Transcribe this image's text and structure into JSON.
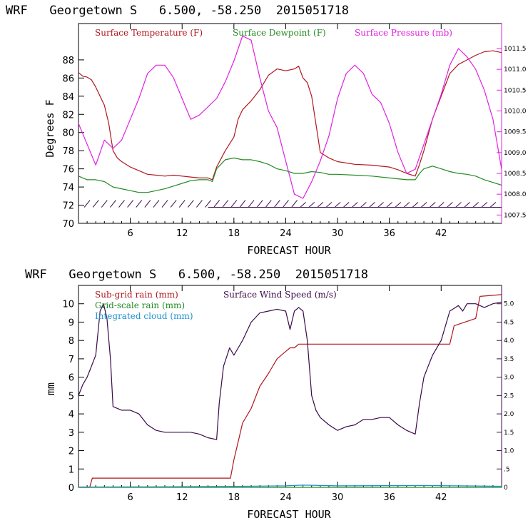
{
  "chart_data": [
    {
      "type": "line",
      "title": "WRF   Georgetown S   6.500, -58.250  2015051718",
      "xlabel": "FORECAST HOUR",
      "ylabel": "Degrees F",
      "xlim": [
        0,
        49
      ],
      "ylim": [
        70,
        92
      ],
      "y2lim": [
        1007.3,
        1012.1
      ],
      "x_ticks": [
        "6",
        "12",
        "18",
        "24",
        "30",
        "36",
        "42"
      ],
      "y_ticks": [
        "70",
        "72",
        "74",
        "76",
        "78",
        "80",
        "82",
        "84",
        "86",
        "88"
      ],
      "y2_ticks": [
        "1007.5",
        "1008.0",
        "1008.5",
        "1009.0",
        "1009.5",
        "1010.0",
        "1010.5",
        "1011.0",
        "1011.5"
      ],
      "grid": false,
      "series": [
        {
          "name": "Surface Temperature (F)",
          "axis": "left",
          "color": "#b0171f",
          "points": [
            [
              0,
              86.6
            ],
            [
              0.5,
              86.2
            ],
            [
              1,
              86.1
            ],
            [
              1.5,
              85.8
            ],
            [
              2,
              85.0
            ],
            [
              3,
              83.0
            ],
            [
              3.5,
              81.0
            ],
            [
              4,
              78.0
            ],
            [
              4.5,
              77.2
            ],
            [
              5,
              76.8
            ],
            [
              6,
              76.2
            ],
            [
              7,
              75.8
            ],
            [
              8,
              75.4
            ],
            [
              9,
              75.3
            ],
            [
              10,
              75.2
            ],
            [
              11,
              75.3
            ],
            [
              12,
              75.2
            ],
            [
              13,
              75.1
            ],
            [
              14,
              75.0
            ],
            [
              15,
              75.0
            ],
            [
              15.5,
              74.8
            ],
            [
              16,
              76.2
            ],
            [
              17,
              78.0
            ],
            [
              18,
              79.5
            ],
            [
              18.5,
              81.5
            ],
            [
              19,
              82.5
            ],
            [
              20,
              83.5
            ],
            [
              21,
              84.7
            ],
            [
              22,
              86.3
            ],
            [
              23,
              87.0
            ],
            [
              24,
              86.8
            ],
            [
              25,
              87.0
            ],
            [
              25.5,
              87.3
            ],
            [
              26,
              86.0
            ],
            [
              26.5,
              85.5
            ],
            [
              27,
              84.0
            ],
            [
              28,
              77.8
            ],
            [
              29,
              77.2
            ],
            [
              30,
              76.8
            ],
            [
              32,
              76.5
            ],
            [
              34,
              76.4
            ],
            [
              36,
              76.2
            ],
            [
              37,
              75.9
            ],
            [
              38,
              75.5
            ],
            [
              39,
              75.2
            ],
            [
              39.5,
              76.5
            ],
            [
              40,
              78.0
            ],
            [
              41,
              81.5
            ],
            [
              42,
              84.0
            ],
            [
              43,
              86.5
            ],
            [
              44,
              87.5
            ],
            [
              45,
              88.0
            ],
            [
              46,
              88.5
            ],
            [
              47,
              88.9
            ],
            [
              48,
              89.0
            ],
            [
              49,
              88.8
            ]
          ]
        },
        {
          "name": "Surface Dewpoint (F)",
          "axis": "left",
          "color": "#228b22",
          "points": [
            [
              0,
              75.2
            ],
            [
              1,
              74.8
            ],
            [
              2,
              74.8
            ],
            [
              3,
              74.6
            ],
            [
              4,
              74.0
            ],
            [
              5,
              73.8
            ],
            [
              6,
              73.6
            ],
            [
              7,
              73.4
            ],
            [
              8,
              73.4
            ],
            [
              9,
              73.6
            ],
            [
              10,
              73.8
            ],
            [
              11,
              74.1
            ],
            [
              12,
              74.4
            ],
            [
              13,
              74.7
            ],
            [
              14,
              74.8
            ],
            [
              15,
              74.8
            ],
            [
              15.5,
              74.6
            ],
            [
              16,
              76.0
            ],
            [
              17,
              77.0
            ],
            [
              18,
              77.2
            ],
            [
              19,
              77.0
            ],
            [
              20,
              77.0
            ],
            [
              21,
              76.8
            ],
            [
              22,
              76.5
            ],
            [
              23,
              76.0
            ],
            [
              24,
              75.8
            ],
            [
              25,
              75.5
            ],
            [
              26,
              75.5
            ],
            [
              27,
              75.7
            ],
            [
              28,
              75.6
            ],
            [
              29,
              75.4
            ],
            [
              30,
              75.4
            ],
            [
              32,
              75.3
            ],
            [
              34,
              75.2
            ],
            [
              36,
              75.0
            ],
            [
              38,
              74.8
            ],
            [
              39,
              74.8
            ],
            [
              39.5,
              75.5
            ],
            [
              40,
              76.0
            ],
            [
              41,
              76.3
            ],
            [
              42,
              76.0
            ],
            [
              43,
              75.7
            ],
            [
              44,
              75.5
            ],
            [
              45,
              75.4
            ],
            [
              46,
              75.2
            ],
            [
              47,
              74.8
            ],
            [
              48,
              74.5
            ],
            [
              49,
              74.2
            ]
          ]
        },
        {
          "name": "Surface Pressure (mb)",
          "axis": "right",
          "color": "#e020e0",
          "points": [
            [
              0,
              1009.7
            ],
            [
              1,
              1009.2
            ],
            [
              2,
              1008.7
            ],
            [
              3,
              1009.3
            ],
            [
              4,
              1009.1
            ],
            [
              5,
              1009.3
            ],
            [
              6,
              1009.8
            ],
            [
              7,
              1010.3
            ],
            [
              8,
              1010.9
            ],
            [
              9,
              1011.1
            ],
            [
              10,
              1011.1
            ],
            [
              11,
              1010.8
            ],
            [
              12,
              1010.3
            ],
            [
              13,
              1009.8
            ],
            [
              14,
              1009.9
            ],
            [
              15,
              1010.1
            ],
            [
              16,
              1010.3
            ],
            [
              17,
              1010.7
            ],
            [
              18,
              1011.2
            ],
            [
              19,
              1011.8
            ],
            [
              20,
              1011.7
            ],
            [
              21,
              1010.8
            ],
            [
              22,
              1010.0
            ],
            [
              23,
              1009.6
            ],
            [
              24,
              1008.8
            ],
            [
              25,
              1008.0
            ],
            [
              26,
              1007.9
            ],
            [
              27,
              1008.3
            ],
            [
              28,
              1008.8
            ],
            [
              29,
              1009.4
            ],
            [
              30,
              1010.3
            ],
            [
              31,
              1010.9
            ],
            [
              32,
              1011.1
            ],
            [
              33,
              1010.9
            ],
            [
              34,
              1010.4
            ],
            [
              35,
              1010.2
            ],
            [
              36,
              1009.7
            ],
            [
              37,
              1009.0
            ],
            [
              38,
              1008.5
            ],
            [
              39,
              1008.6
            ],
            [
              40,
              1009.2
            ],
            [
              41,
              1009.8
            ],
            [
              42,
              1010.4
            ],
            [
              43,
              1011.1
            ],
            [
              44,
              1011.5
            ],
            [
              45,
              1011.3
            ],
            [
              46,
              1011.0
            ],
            [
              47,
              1010.5
            ],
            [
              48,
              1009.8
            ],
            [
              49,
              1008.6
            ]
          ]
        }
      ]
    },
    {
      "type": "line",
      "title": "WRF   Georgetown S   6.500, -58.250  2015051718",
      "xlabel": "FORECAST HOUR",
      "ylabel": "mm",
      "xlim": [
        0,
        49
      ],
      "ylim": [
        0,
        11
      ],
      "y2lim": [
        0,
        5.5
      ],
      "x_ticks": [
        "6",
        "12",
        "18",
        "24",
        "30",
        "36",
        "42"
      ],
      "y_ticks": [
        "0",
        "1",
        "2",
        "3",
        "4",
        "5",
        "6",
        "7",
        "8",
        "9",
        "10"
      ],
      "y2_ticks": [
        "0",
        ".5",
        "1.0",
        "1.5",
        "2.0",
        "2.5",
        "3.0",
        "3.5",
        "4.0",
        "4.5",
        "5.0"
      ],
      "grid": false,
      "series": [
        {
          "name": "Sub-grid rain (mm)",
          "axis": "left",
          "color": "#b0171f",
          "points": [
            [
              0,
              0
            ],
            [
              1.3,
              0
            ],
            [
              1.6,
              0.5
            ],
            [
              17.6,
              0.5
            ],
            [
              18,
              1.5
            ],
            [
              18.5,
              2.5
            ],
            [
              19,
              3.5
            ],
            [
              20,
              4.3
            ],
            [
              21,
              5.5
            ],
            [
              22,
              6.2
            ],
            [
              23,
              7.0
            ],
            [
              24,
              7.4
            ],
            [
              24.5,
              7.6
            ],
            [
              25,
              7.6
            ],
            [
              25.5,
              7.8
            ],
            [
              43,
              7.8
            ],
            [
              43.5,
              8.8
            ],
            [
              46,
              9.2
            ],
            [
              46.5,
              10.4
            ],
            [
              49,
              10.5
            ]
          ]
        },
        {
          "name": "Grid-scale rain (mm)",
          "axis": "left",
          "color": "#228b22",
          "points": [
            [
              0,
              0
            ],
            [
              49,
              0
            ]
          ]
        },
        {
          "name": "Integrated cloud (mm)",
          "axis": "left",
          "color": "#1e90d0",
          "points": [
            [
              0,
              0.02
            ],
            [
              10,
              0.03
            ],
            [
              17,
              0.05
            ],
            [
              24,
              0.08
            ],
            [
              26,
              0.12
            ],
            [
              30,
              0.08
            ],
            [
              40,
              0.1
            ],
            [
              44,
              0.08
            ],
            [
              49,
              0.06
            ]
          ]
        },
        {
          "name": "Surface Wind Speed (m/s)",
          "axis": "right",
          "color": "#3a0a4a",
          "points": [
            [
              0,
              2.5
            ],
            [
              0.5,
              2.8
            ],
            [
              1,
              3.0
            ],
            [
              1.5,
              3.3
            ],
            [
              2,
              3.6
            ],
            [
              2.5,
              4.8
            ],
            [
              2.9,
              5.0
            ],
            [
              3.3,
              4.6
            ],
            [
              3.7,
              3.5
            ],
            [
              4,
              2.2
            ],
            [
              5,
              2.1
            ],
            [
              6,
              2.1
            ],
            [
              7,
              2.0
            ],
            [
              8,
              1.7
            ],
            [
              9,
              1.55
            ],
            [
              10,
              1.5
            ],
            [
              11,
              1.5
            ],
            [
              12,
              1.5
            ],
            [
              13,
              1.5
            ],
            [
              14,
              1.45
            ],
            [
              15,
              1.35
            ],
            [
              16,
              1.3
            ],
            [
              16.3,
              2.3
            ],
            [
              16.8,
              3.3
            ],
            [
              17.5,
              3.8
            ],
            [
              18,
              3.6
            ],
            [
              18.5,
              3.8
            ],
            [
              19,
              4.0
            ],
            [
              20,
              4.5
            ],
            [
              21,
              4.75
            ],
            [
              22,
              4.8
            ],
            [
              23,
              4.85
            ],
            [
              24,
              4.8
            ],
            [
              24.5,
              4.3
            ],
            [
              25,
              4.8
            ],
            [
              25.5,
              4.9
            ],
            [
              26,
              4.8
            ],
            [
              26.5,
              4.0
            ],
            [
              27,
              2.5
            ],
            [
              27.5,
              2.1
            ],
            [
              28,
              1.9
            ],
            [
              29,
              1.7
            ],
            [
              30,
              1.55
            ],
            [
              31,
              1.65
            ],
            [
              32,
              1.7
            ],
            [
              33,
              1.85
            ],
            [
              34,
              1.85
            ],
            [
              35,
              1.9
            ],
            [
              36,
              1.9
            ],
            [
              37,
              1.7
            ],
            [
              38,
              1.55
            ],
            [
              39,
              1.45
            ],
            [
              39.5,
              2.3
            ],
            [
              40,
              3.0
            ],
            [
              40.5,
              3.3
            ],
            [
              41,
              3.6
            ],
            [
              42,
              4.0
            ],
            [
              43,
              4.8
            ],
            [
              44,
              4.95
            ],
            [
              44.5,
              4.8
            ],
            [
              45,
              5.0
            ],
            [
              46,
              5.0
            ],
            [
              47,
              4.9
            ],
            [
              48,
              5.0
            ],
            [
              49,
              5.05
            ]
          ]
        }
      ]
    }
  ]
}
